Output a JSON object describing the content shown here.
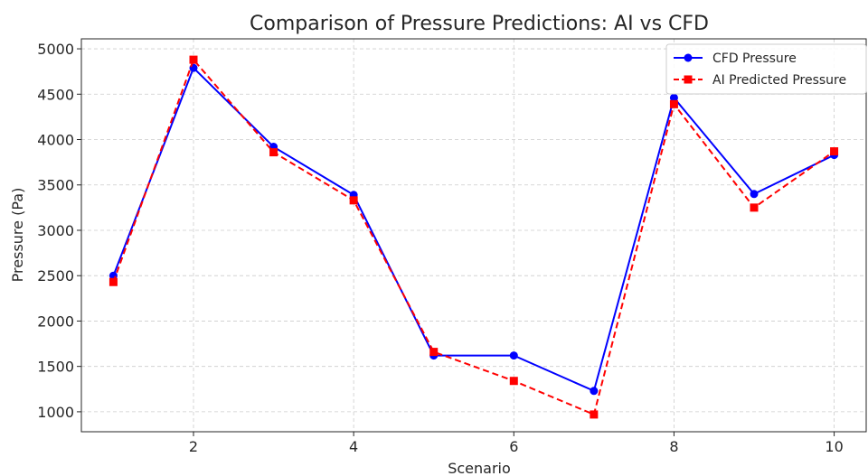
{
  "chart_data": {
    "type": "line",
    "title": "Comparison of Pressure Predictions: AI vs CFD",
    "xlabel": "Scenario",
    "ylabel": "Pressure (Pa)",
    "x": [
      1,
      2,
      3,
      4,
      5,
      6,
      7,
      8,
      9,
      10
    ],
    "xticks": [
      2,
      4,
      6,
      8,
      10
    ],
    "yticks": [
      1000,
      1500,
      2000,
      2500,
      3000,
      3500,
      4000,
      4500,
      5000
    ],
    "xlim": [
      0.6,
      10.4
    ],
    "ylim": [
      780,
      5110
    ],
    "grid": true,
    "legend_position": "top-right",
    "series": [
      {
        "name": "CFD Pressure",
        "color": "#0000ff",
        "line_style": "solid",
        "marker": "circle",
        "values": [
          2500,
          4790,
          3920,
          3390,
          1620,
          1620,
          1230,
          4460,
          3400,
          3830
        ]
      },
      {
        "name": "AI Predicted Pressure",
        "color": "#ff0000",
        "line_style": "dashed",
        "marker": "square",
        "values": [
          2430,
          4880,
          3860,
          3330,
          1660,
          1340,
          970,
          4390,
          3250,
          3870
        ]
      }
    ]
  }
}
